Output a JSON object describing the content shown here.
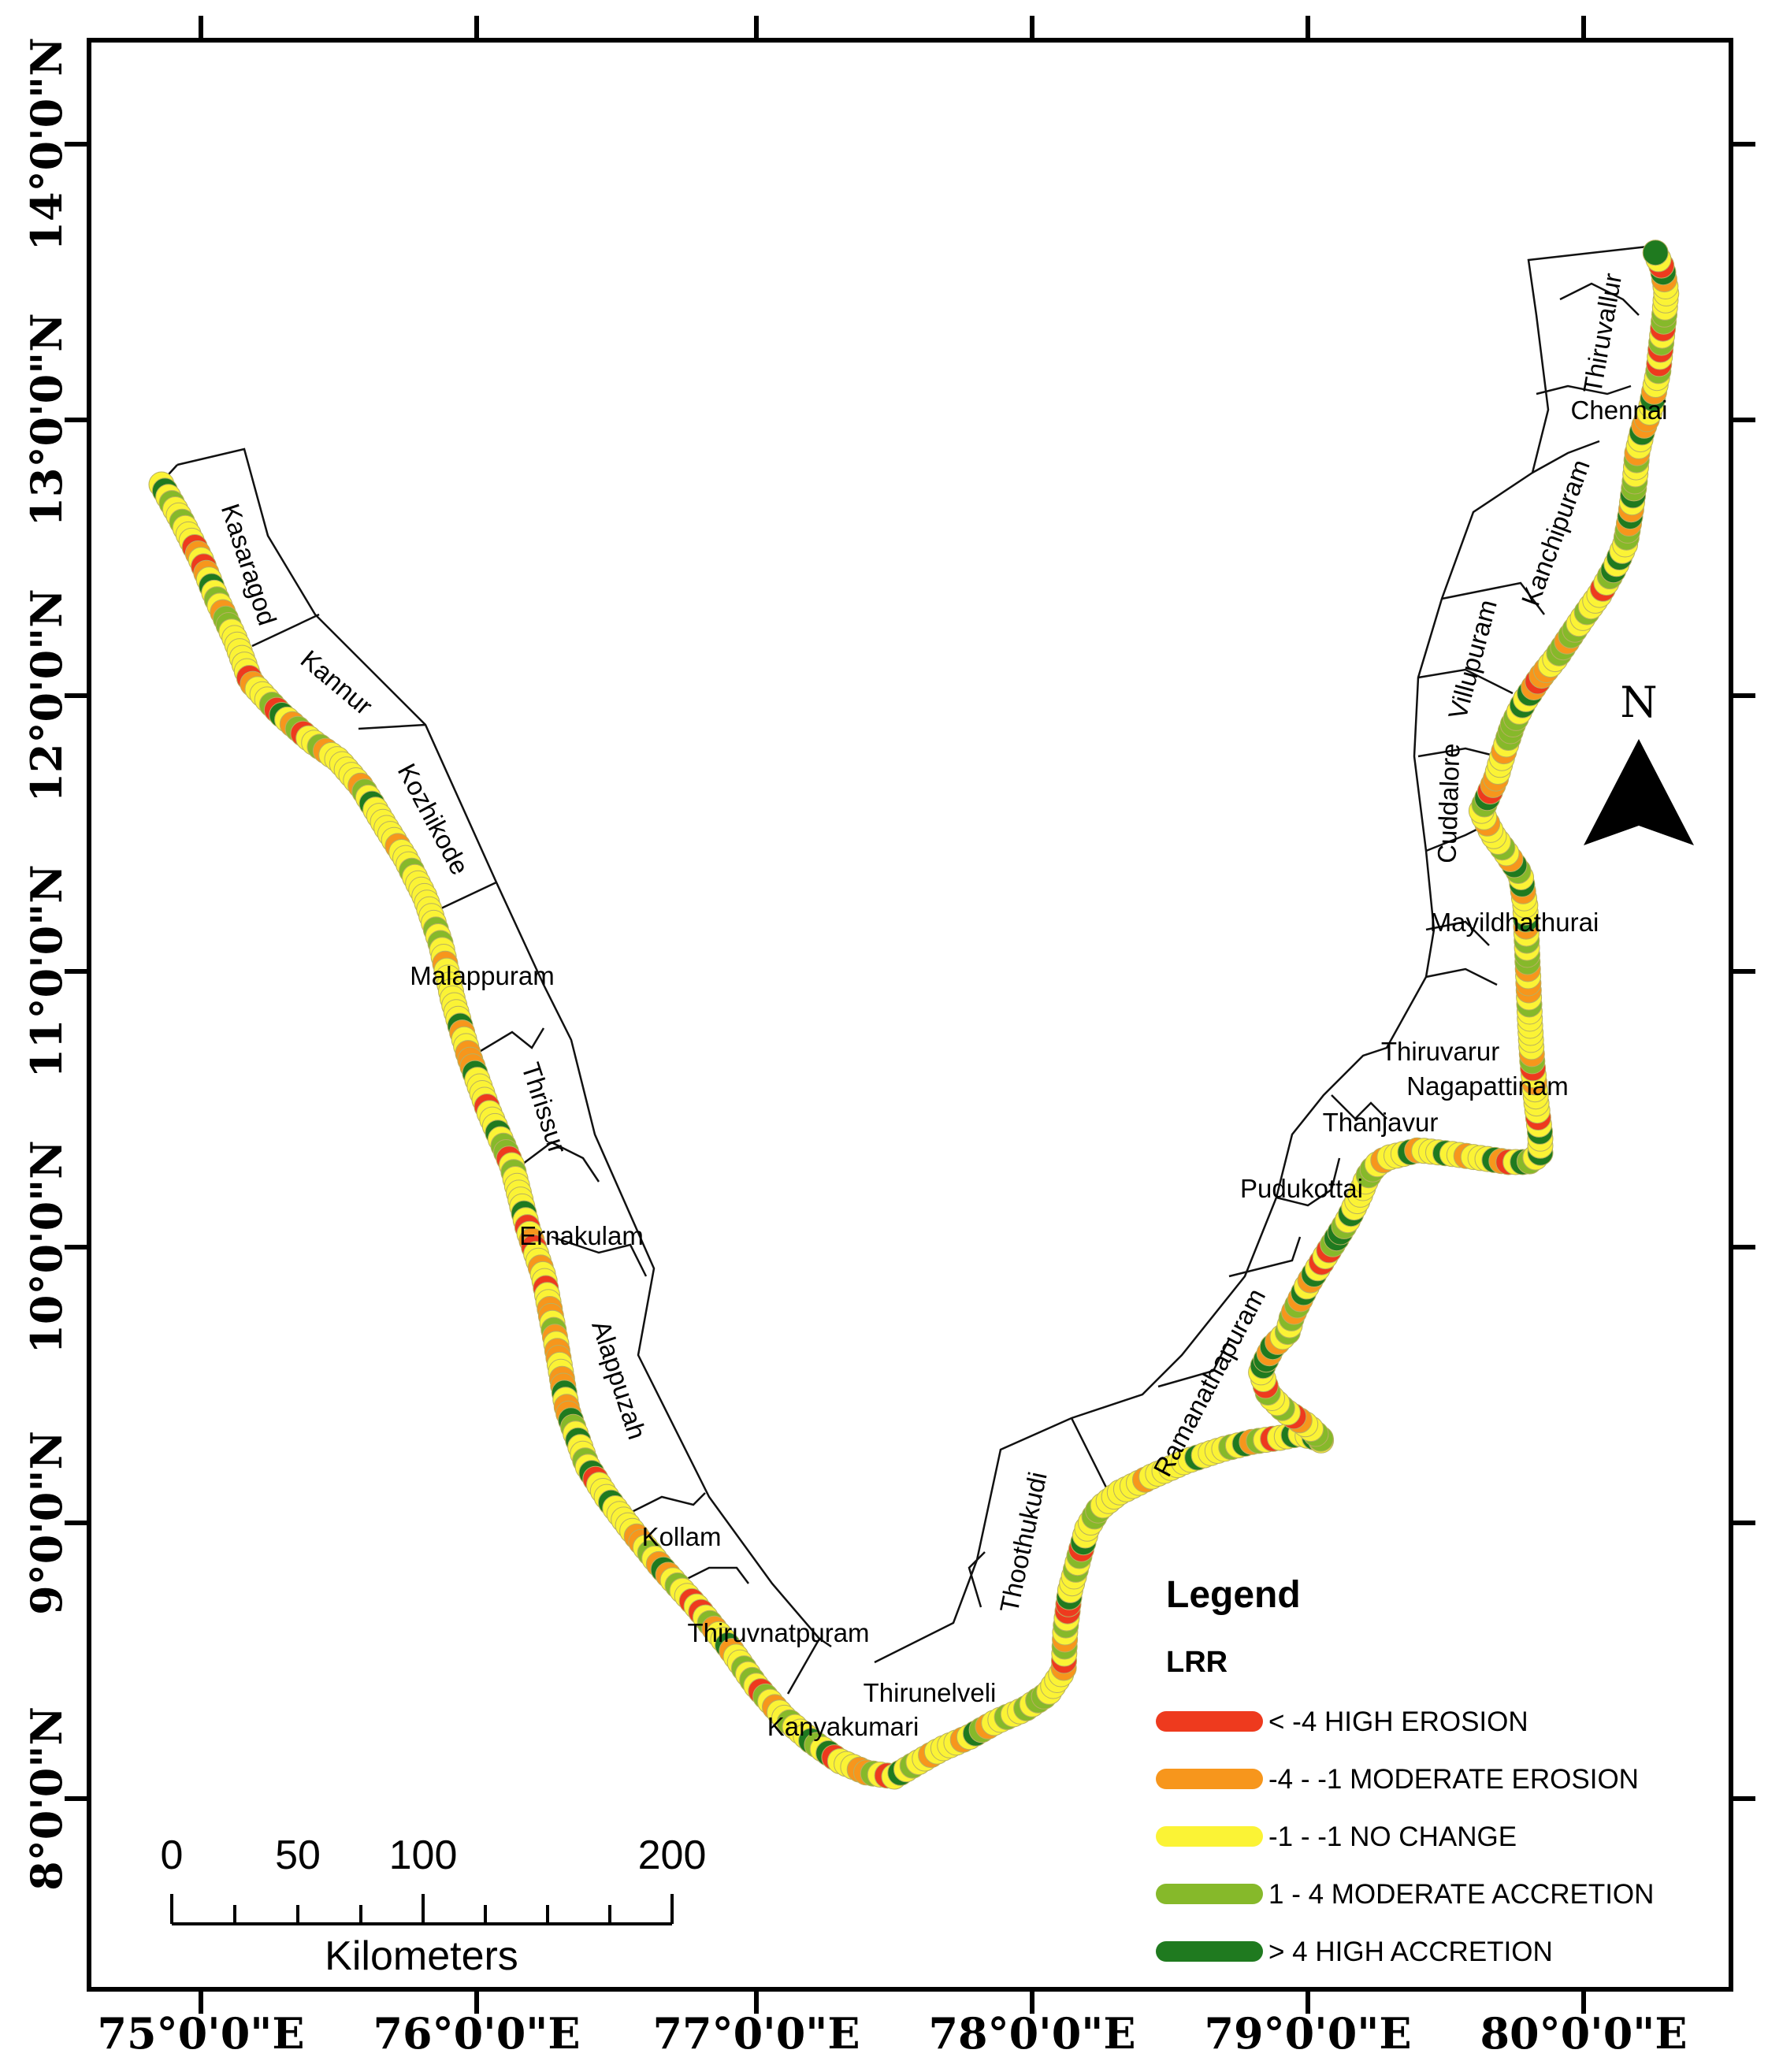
{
  "axes": {
    "longitude_labels": [
      "75°0'0\"E",
      "76°0'0\"E",
      "77°0'0\"E",
      "78°0'0\"E",
      "79°0'0\"E",
      "80°0'0\"E"
    ],
    "latitude_labels": [
      "14°0'0\"N",
      "13°0'0\"N",
      "12°0'0\"N",
      "11°0'0\"N",
      "10°0'0\"N",
      "9°0'0\"N",
      "8°0'0\"N"
    ]
  },
  "districts": [
    "Kasaragod",
    "Kannur",
    "Kozhikode",
    "Malappuram",
    "Thrissur",
    "Ernakulam",
    "Alappuzah",
    "Kollam",
    "Thiruvnatpuram",
    "Kanyakumari",
    "Thirunelveli",
    "Thoothukudi",
    "Ramanathapuram",
    "Pudukottai",
    "Thanjavur",
    "Thiruvarur",
    "Nagapattinam",
    "Mayildhathurai",
    "Cuddalore",
    "Villupuram",
    "Kanchipuram",
    "Chennai",
    "Thiruvallur"
  ],
  "legend": {
    "title": "Legend",
    "subtitle": "LRR",
    "items": [
      {
        "label": "< -4 HIGH EROSION",
        "color": "#ee3a1e"
      },
      {
        "label": "-4 - -1 MODERATE EROSION",
        "color": "#f7961c"
      },
      {
        "label": "-1 - -1 NO CHANGE",
        "color": "#fbf335"
      },
      {
        "label": "1 - 4 MODERATE ACCRETION",
        "color": "#86b92a"
      },
      {
        "label": "> 4 HIGH ACCRETION",
        "color": "#1f7a1f"
      }
    ]
  },
  "scale_bar": {
    "labels": [
      "0",
      "50",
      "100",
      "200"
    ],
    "unit": "Kilometers"
  },
  "north_arrow": {
    "label": "N"
  }
}
